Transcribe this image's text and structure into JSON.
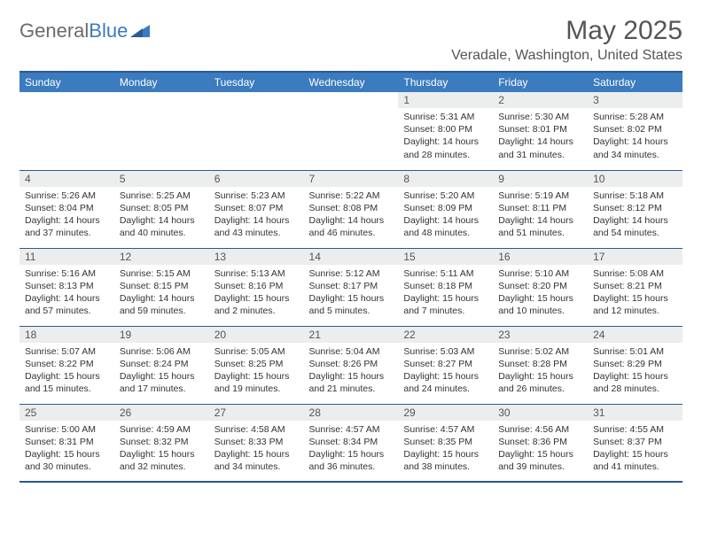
{
  "logo": {
    "text_left": "General",
    "text_right": "Blue"
  },
  "title": "May 2025",
  "location": "Veradale, Washington, United States",
  "day_headers": [
    "Sunday",
    "Monday",
    "Tuesday",
    "Wednesday",
    "Thursday",
    "Friday",
    "Saturday"
  ],
  "colors": {
    "header_bg": "#3b7bbf",
    "header_border": "#2a5a8f",
    "daynum_bg": "#eceded",
    "text": "#333333",
    "muted": "#555555",
    "page_bg": "#ffffff"
  },
  "weeks": [
    [
      {
        "num": "",
        "sunrise": "",
        "sunset": "",
        "daylight": ""
      },
      {
        "num": "",
        "sunrise": "",
        "sunset": "",
        "daylight": ""
      },
      {
        "num": "",
        "sunrise": "",
        "sunset": "",
        "daylight": ""
      },
      {
        "num": "",
        "sunrise": "",
        "sunset": "",
        "daylight": ""
      },
      {
        "num": "1",
        "sunrise": "Sunrise: 5:31 AM",
        "sunset": "Sunset: 8:00 PM",
        "daylight": "Daylight: 14 hours and 28 minutes."
      },
      {
        "num": "2",
        "sunrise": "Sunrise: 5:30 AM",
        "sunset": "Sunset: 8:01 PM",
        "daylight": "Daylight: 14 hours and 31 minutes."
      },
      {
        "num": "3",
        "sunrise": "Sunrise: 5:28 AM",
        "sunset": "Sunset: 8:02 PM",
        "daylight": "Daylight: 14 hours and 34 minutes."
      }
    ],
    [
      {
        "num": "4",
        "sunrise": "Sunrise: 5:26 AM",
        "sunset": "Sunset: 8:04 PM",
        "daylight": "Daylight: 14 hours and 37 minutes."
      },
      {
        "num": "5",
        "sunrise": "Sunrise: 5:25 AM",
        "sunset": "Sunset: 8:05 PM",
        "daylight": "Daylight: 14 hours and 40 minutes."
      },
      {
        "num": "6",
        "sunrise": "Sunrise: 5:23 AM",
        "sunset": "Sunset: 8:07 PM",
        "daylight": "Daylight: 14 hours and 43 minutes."
      },
      {
        "num": "7",
        "sunrise": "Sunrise: 5:22 AM",
        "sunset": "Sunset: 8:08 PM",
        "daylight": "Daylight: 14 hours and 46 minutes."
      },
      {
        "num": "8",
        "sunrise": "Sunrise: 5:20 AM",
        "sunset": "Sunset: 8:09 PM",
        "daylight": "Daylight: 14 hours and 48 minutes."
      },
      {
        "num": "9",
        "sunrise": "Sunrise: 5:19 AM",
        "sunset": "Sunset: 8:11 PM",
        "daylight": "Daylight: 14 hours and 51 minutes."
      },
      {
        "num": "10",
        "sunrise": "Sunrise: 5:18 AM",
        "sunset": "Sunset: 8:12 PM",
        "daylight": "Daylight: 14 hours and 54 minutes."
      }
    ],
    [
      {
        "num": "11",
        "sunrise": "Sunrise: 5:16 AM",
        "sunset": "Sunset: 8:13 PM",
        "daylight": "Daylight: 14 hours and 57 minutes."
      },
      {
        "num": "12",
        "sunrise": "Sunrise: 5:15 AM",
        "sunset": "Sunset: 8:15 PM",
        "daylight": "Daylight: 14 hours and 59 minutes."
      },
      {
        "num": "13",
        "sunrise": "Sunrise: 5:13 AM",
        "sunset": "Sunset: 8:16 PM",
        "daylight": "Daylight: 15 hours and 2 minutes."
      },
      {
        "num": "14",
        "sunrise": "Sunrise: 5:12 AM",
        "sunset": "Sunset: 8:17 PM",
        "daylight": "Daylight: 15 hours and 5 minutes."
      },
      {
        "num": "15",
        "sunrise": "Sunrise: 5:11 AM",
        "sunset": "Sunset: 8:18 PM",
        "daylight": "Daylight: 15 hours and 7 minutes."
      },
      {
        "num": "16",
        "sunrise": "Sunrise: 5:10 AM",
        "sunset": "Sunset: 8:20 PM",
        "daylight": "Daylight: 15 hours and 10 minutes."
      },
      {
        "num": "17",
        "sunrise": "Sunrise: 5:08 AM",
        "sunset": "Sunset: 8:21 PM",
        "daylight": "Daylight: 15 hours and 12 minutes."
      }
    ],
    [
      {
        "num": "18",
        "sunrise": "Sunrise: 5:07 AM",
        "sunset": "Sunset: 8:22 PM",
        "daylight": "Daylight: 15 hours and 15 minutes."
      },
      {
        "num": "19",
        "sunrise": "Sunrise: 5:06 AM",
        "sunset": "Sunset: 8:24 PM",
        "daylight": "Daylight: 15 hours and 17 minutes."
      },
      {
        "num": "20",
        "sunrise": "Sunrise: 5:05 AM",
        "sunset": "Sunset: 8:25 PM",
        "daylight": "Daylight: 15 hours and 19 minutes."
      },
      {
        "num": "21",
        "sunrise": "Sunrise: 5:04 AM",
        "sunset": "Sunset: 8:26 PM",
        "daylight": "Daylight: 15 hours and 21 minutes."
      },
      {
        "num": "22",
        "sunrise": "Sunrise: 5:03 AM",
        "sunset": "Sunset: 8:27 PM",
        "daylight": "Daylight: 15 hours and 24 minutes."
      },
      {
        "num": "23",
        "sunrise": "Sunrise: 5:02 AM",
        "sunset": "Sunset: 8:28 PM",
        "daylight": "Daylight: 15 hours and 26 minutes."
      },
      {
        "num": "24",
        "sunrise": "Sunrise: 5:01 AM",
        "sunset": "Sunset: 8:29 PM",
        "daylight": "Daylight: 15 hours and 28 minutes."
      }
    ],
    [
      {
        "num": "25",
        "sunrise": "Sunrise: 5:00 AM",
        "sunset": "Sunset: 8:31 PM",
        "daylight": "Daylight: 15 hours and 30 minutes."
      },
      {
        "num": "26",
        "sunrise": "Sunrise: 4:59 AM",
        "sunset": "Sunset: 8:32 PM",
        "daylight": "Daylight: 15 hours and 32 minutes."
      },
      {
        "num": "27",
        "sunrise": "Sunrise: 4:58 AM",
        "sunset": "Sunset: 8:33 PM",
        "daylight": "Daylight: 15 hours and 34 minutes."
      },
      {
        "num": "28",
        "sunrise": "Sunrise: 4:57 AM",
        "sunset": "Sunset: 8:34 PM",
        "daylight": "Daylight: 15 hours and 36 minutes."
      },
      {
        "num": "29",
        "sunrise": "Sunrise: 4:57 AM",
        "sunset": "Sunset: 8:35 PM",
        "daylight": "Daylight: 15 hours and 38 minutes."
      },
      {
        "num": "30",
        "sunrise": "Sunrise: 4:56 AM",
        "sunset": "Sunset: 8:36 PM",
        "daylight": "Daylight: 15 hours and 39 minutes."
      },
      {
        "num": "31",
        "sunrise": "Sunrise: 4:55 AM",
        "sunset": "Sunset: 8:37 PM",
        "daylight": "Daylight: 15 hours and 41 minutes."
      }
    ]
  ]
}
